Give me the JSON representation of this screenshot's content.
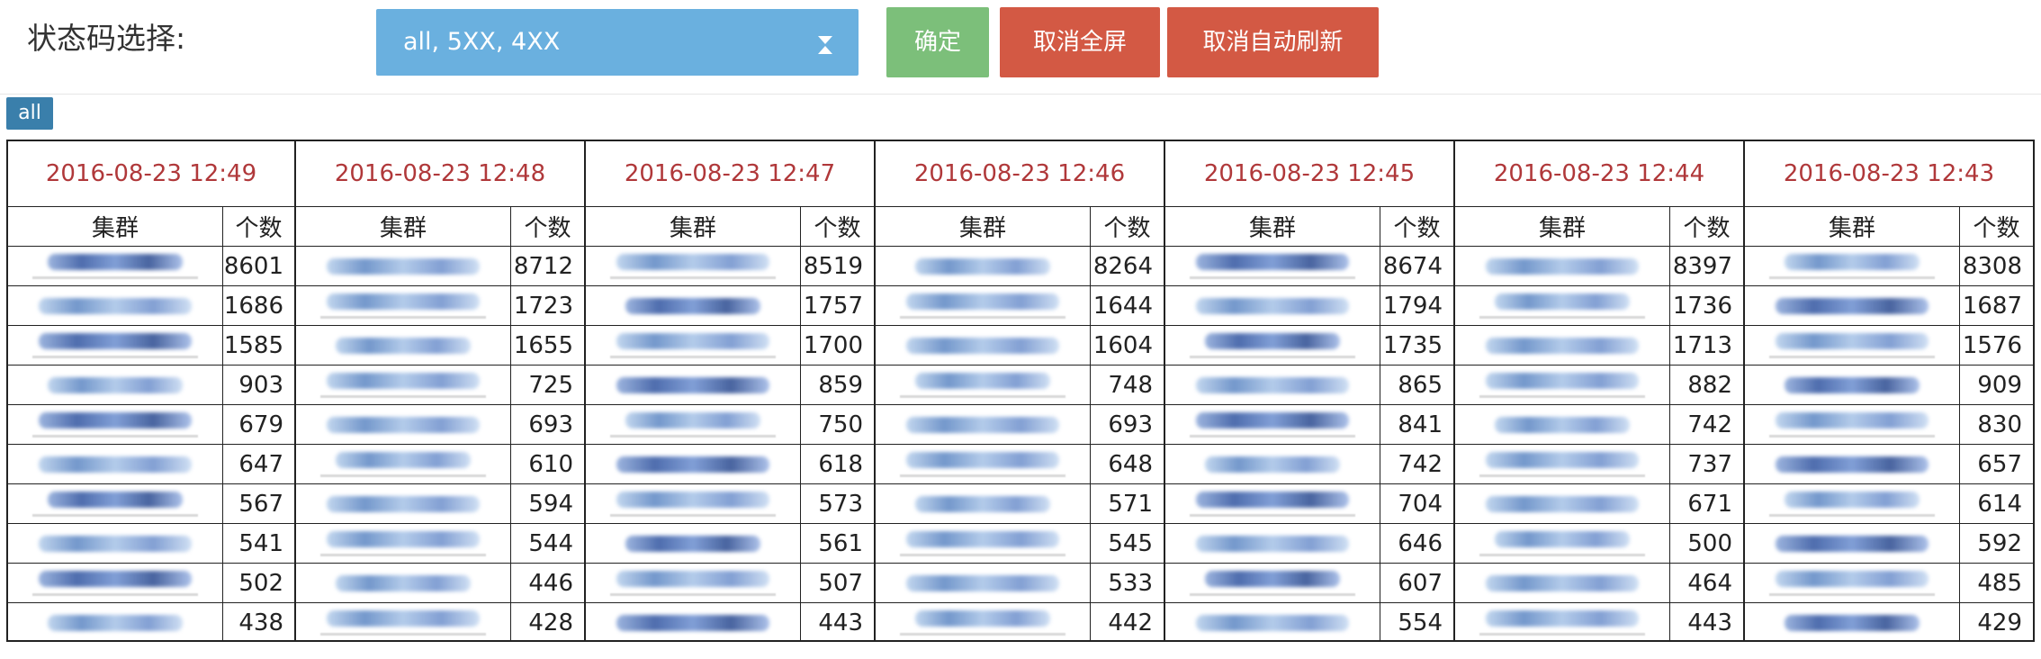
{
  "toolbar": {
    "filter_label": "状态码选择:",
    "select_value": "all, 5XX, 4XX",
    "confirm_label": "确定",
    "exit_fullscreen_label": "取消全屏",
    "stop_refresh_label": "取消自动刷新"
  },
  "badge": "all",
  "table_headers": {
    "cluster": "集群",
    "count": "个数"
  },
  "panels": [
    {
      "time": "2016-08-23 12:49",
      "rows": [
        8601,
        1686,
        1585,
        903,
        679,
        647,
        567,
        541,
        502,
        438
      ]
    },
    {
      "time": "2016-08-23 12:48",
      "rows": [
        8712,
        1723,
        1655,
        725,
        693,
        610,
        594,
        544,
        446,
        428
      ]
    },
    {
      "time": "2016-08-23 12:47",
      "rows": [
        8519,
        1757,
        1700,
        859,
        750,
        618,
        573,
        561,
        507,
        443
      ]
    },
    {
      "time": "2016-08-23 12:46",
      "rows": [
        8264,
        1644,
        1604,
        748,
        693,
        648,
        571,
        545,
        533,
        442
      ]
    },
    {
      "time": "2016-08-23 12:45",
      "rows": [
        8674,
        1794,
        1735,
        865,
        841,
        742,
        704,
        646,
        607,
        554
      ]
    },
    {
      "time": "2016-08-23 12:44",
      "rows": [
        8397,
        1736,
        1713,
        882,
        742,
        737,
        671,
        500,
        464,
        443
      ]
    },
    {
      "time": "2016-08-23 12:43",
      "rows": [
        8308,
        1687,
        1576,
        909,
        830,
        657,
        614,
        592,
        485,
        429
      ]
    }
  ],
  "colors": {
    "select_bg": "#6ab0df",
    "confirm_bg": "#7cbf7a",
    "danger_bg": "#d35944",
    "time_text": "#b0383a",
    "badge_bg": "#3a7fab"
  }
}
